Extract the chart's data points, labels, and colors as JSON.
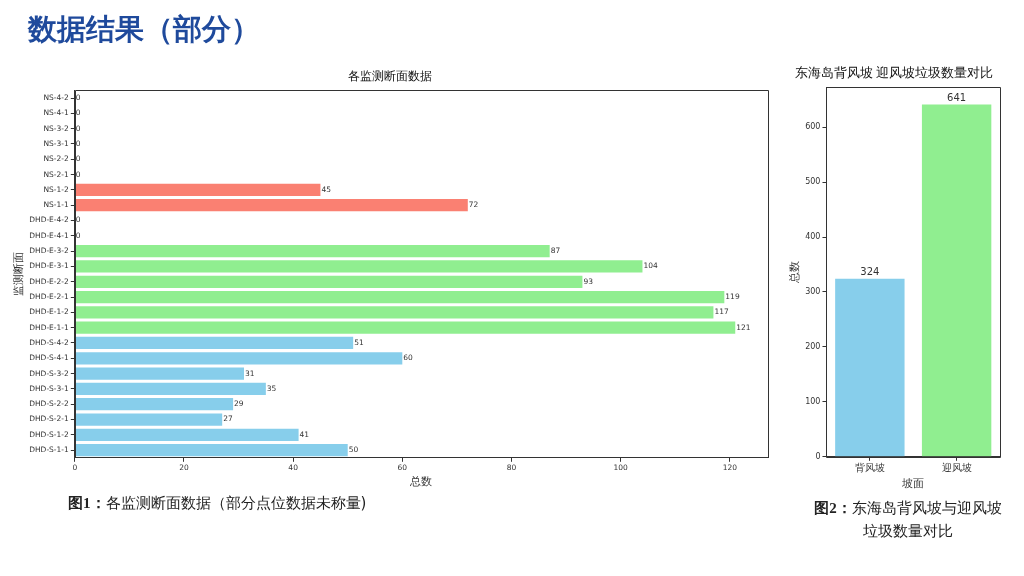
{
  "chart_data": [
    {
      "type": "other",
      "title": "数据结果（部分）"
    },
    {
      "type": "bar",
      "orientation": "horizontal",
      "title": "各监测断面数据",
      "xlabel": "总数",
      "ylabel": "监测断面",
      "categories": [
        "NS-4-2",
        "NS-4-1",
        "NS-3-2",
        "NS-3-1",
        "NS-2-2",
        "NS-2-1",
        "NS-1-2",
        "NS-1-1",
        "DHD-E-4-2",
        "DHD-E-4-1",
        "DHD-E-3-2",
        "DHD-E-3-1",
        "DHD-E-2-2",
        "DHD-E-2-1",
        "DHD-E-1-2",
        "DHD-E-1-1",
        "DHD-S-4-2",
        "DHD-S-4-1",
        "DHD-S-3-2",
        "DHD-S-3-1",
        "DHD-S-2-2",
        "DHD-S-2-1",
        "DHD-S-1-2",
        "DHD-S-1-1"
      ],
      "values": [
        0,
        0,
        0,
        0,
        0,
        0,
        45,
        72,
        0,
        0,
        87,
        104,
        93,
        119,
        117,
        121,
        51,
        60,
        31,
        35,
        29,
        27,
        41,
        50
      ],
      "colors": [
        "#fa8072",
        "#fa8072",
        "#fa8072",
        "#fa8072",
        "#fa8072",
        "#fa8072",
        "#fa8072",
        "#fa8072",
        "#90ee90",
        "#90ee90",
        "#90ee90",
        "#90ee90",
        "#90ee90",
        "#90ee90",
        "#90ee90",
        "#90ee90",
        "#87ceeb",
        "#87ceeb",
        "#87ceeb",
        "#87ceeb",
        "#87ceeb",
        "#87ceeb",
        "#87ceeb",
        "#87ceeb"
      ],
      "xlim": [
        0,
        127
      ],
      "xticks": [
        0,
        20,
        40,
        60,
        80,
        100,
        120
      ],
      "data_labels": true,
      "annotations": [
        "图1：各监测断面数据（部分点位数据未称量)"
      ]
    },
    {
      "type": "bar",
      "title": "东海岛背风坡 迎风坡垃圾数量对比",
      "xlabel": "坡面",
      "ylabel": "总数",
      "categories": [
        "背风坡",
        "迎风坡"
      ],
      "values": [
        324,
        641
      ],
      "colors": [
        "#87ceeb",
        "#90ee90"
      ],
      "ylim": [
        0,
        673
      ],
      "yticks": [
        0,
        100,
        200,
        300,
        400,
        500,
        600
      ],
      "data_labels": true,
      "annotations": [
        "图2：东海岛背风坡与迎风坡垃圾数量对比"
      ]
    }
  ]
}
